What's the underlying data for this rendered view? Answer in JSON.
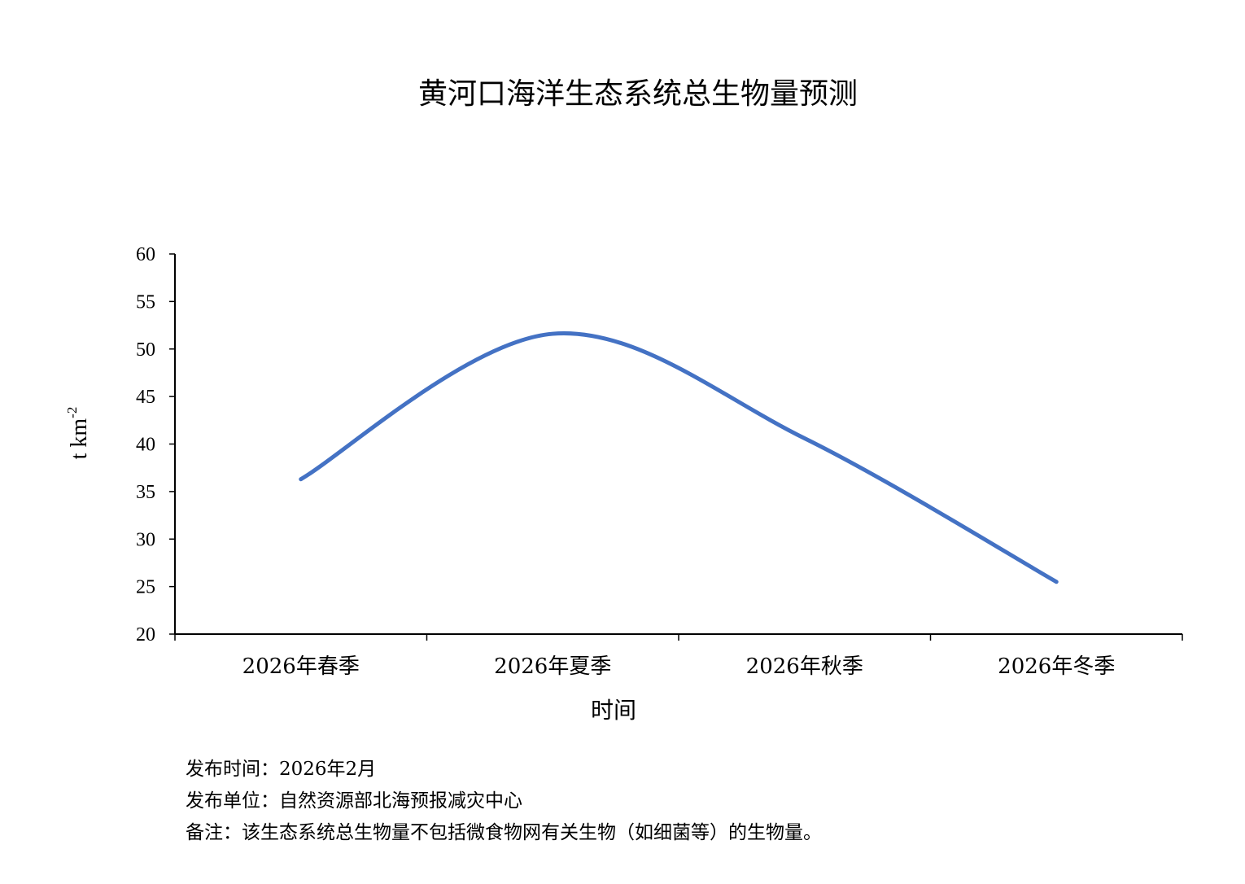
{
  "chart_data": {
    "type": "line",
    "title": "黄河口海洋生态系统总生物量预测",
    "xlabel": "时间",
    "ylabel": "t km",
    "ylabel_superscript": "-2",
    "categories": [
      "2026年春季",
      "2026年夏季",
      "2026年秋季",
      "2026年冬季"
    ],
    "series": [
      {
        "values": [
          36.3,
          51.6,
          40.6,
          25.5
        ],
        "color": "#4472C4",
        "smooth": true
      }
    ],
    "ylim": [
      20,
      60
    ],
    "yticks": [
      20,
      25,
      30,
      35,
      40,
      45,
      50,
      55,
      60
    ],
    "grid": false,
    "legend": "none"
  },
  "notes": [
    "发布时间：2026年2月",
    "发布单位：自然资源部北海预报减灾中心",
    "备注：该生态系统总生物量不包括微食物网有关生物（如细菌等）的生物量。"
  ]
}
